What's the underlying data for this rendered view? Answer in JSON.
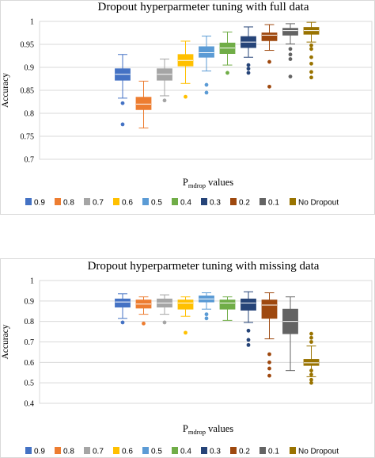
{
  "chart_data": [
    {
      "type": "box",
      "title": "Dropout hyperparmeter tuning with full data",
      "ylabel": "Accuracy",
      "xlabel": {
        "main": "P",
        "subscript": "mdrop",
        "suffix": " values"
      },
      "ylim": [
        0.7,
        1.0
      ],
      "ytick_step": 0.05,
      "yticks": [
        "0.7",
        "0.75",
        "0.8",
        "0.85",
        "0.9",
        "0.95",
        "1"
      ],
      "grid": true,
      "legend_position": "bottom",
      "series": [
        {
          "name": "0.9",
          "color": "#4472C4",
          "min": 0.833,
          "q1": 0.872,
          "median": 0.885,
          "q3": 0.897,
          "max": 0.928,
          "outliers": [
            0.822,
            0.776
          ]
        },
        {
          "name": "0.8",
          "color": "#ED7D31",
          "min": 0.768,
          "q1": 0.808,
          "median": 0.82,
          "q3": 0.835,
          "max": 0.87,
          "outliers": []
        },
        {
          "name": "0.7",
          "color": "#A5A5A5",
          "min": 0.838,
          "q1": 0.872,
          "median": 0.885,
          "q3": 0.897,
          "max": 0.918,
          "outliers": [
            0.828
          ]
        },
        {
          "name": "0.6",
          "color": "#FFC000",
          "min": 0.865,
          "q1": 0.903,
          "median": 0.915,
          "q3": 0.928,
          "max": 0.957,
          "outliers": [
            0.836
          ]
        },
        {
          "name": "0.5",
          "color": "#5B9BD5",
          "min": 0.892,
          "q1": 0.922,
          "median": 0.932,
          "q3": 0.945,
          "max": 0.968,
          "outliers": [
            0.862,
            0.845
          ]
        },
        {
          "name": "0.4",
          "color": "#70AD47",
          "min": 0.905,
          "q1": 0.93,
          "median": 0.942,
          "q3": 0.953,
          "max": 0.977,
          "outliers": [
            0.888
          ]
        },
        {
          "name": "0.3",
          "color": "#264478",
          "min": 0.922,
          "q1": 0.943,
          "median": 0.955,
          "q3": 0.967,
          "max": 0.988,
          "outliers": [
            0.905,
            0.897,
            0.888
          ]
        },
        {
          "name": "0.2",
          "color": "#9E480E",
          "min": 0.937,
          "q1": 0.958,
          "median": 0.97,
          "q3": 0.975,
          "max": 0.993,
          "outliers": [
            0.912,
            0.858
          ]
        },
        {
          "name": "0.1",
          "color": "#636363",
          "min": 0.951,
          "q1": 0.97,
          "median": 0.98,
          "q3": 0.985,
          "max": 0.995,
          "outliers": [
            0.94,
            0.928,
            0.918,
            0.88
          ]
        },
        {
          "name": "No Dropout",
          "color": "#997300",
          "min": 0.955,
          "q1": 0.972,
          "median": 0.98,
          "q3": 0.987,
          "max": 0.998,
          "outliers": [
            0.948,
            0.94,
            0.922,
            0.908,
            0.89,
            0.878
          ]
        }
      ]
    },
    {
      "type": "box",
      "title": "Dropout hyperparmeter tuning with missing data",
      "ylabel": "Accuracy",
      "xlabel": {
        "main": "P",
        "subscript": "mdrop",
        "suffix": " values"
      },
      "ylim": [
        0.4,
        1.0
      ],
      "ytick_step": 0.1,
      "yticks": [
        "0.4",
        "0.5",
        "0.6",
        "0.7",
        "0.8",
        "0.9",
        "1"
      ],
      "grid": true,
      "legend_position": "bottom",
      "series": [
        {
          "name": "0.9",
          "color": "#4472C4",
          "min": 0.815,
          "q1": 0.87,
          "median": 0.895,
          "q3": 0.91,
          "max": 0.935,
          "outliers": [
            0.795
          ]
        },
        {
          "name": "0.8",
          "color": "#ED7D31",
          "min": 0.835,
          "q1": 0.865,
          "median": 0.885,
          "q3": 0.905,
          "max": 0.92,
          "outliers": [
            0.79
          ]
        },
        {
          "name": "0.7",
          "color": "#A5A5A5",
          "min": 0.835,
          "q1": 0.87,
          "median": 0.89,
          "q3": 0.91,
          "max": 0.93,
          "outliers": [
            0.795
          ]
        },
        {
          "name": "0.6",
          "color": "#FFC000",
          "min": 0.825,
          "q1": 0.86,
          "median": 0.89,
          "q3": 0.905,
          "max": 0.92,
          "outliers": [
            0.745
          ]
        },
        {
          "name": "0.5",
          "color": "#5B9BD5",
          "min": 0.86,
          "q1": 0.895,
          "median": 0.91,
          "q3": 0.925,
          "max": 0.94,
          "outliers": [
            0.835,
            0.815
          ]
        },
        {
          "name": "0.4",
          "color": "#70AD47",
          "min": 0.805,
          "q1": 0.86,
          "median": 0.89,
          "q3": 0.905,
          "max": 0.92,
          "outliers": []
        },
        {
          "name": "0.3",
          "color": "#264478",
          "min": 0.795,
          "q1": 0.855,
          "median": 0.89,
          "q3": 0.91,
          "max": 0.945,
          "outliers": [
            0.755,
            0.71,
            0.685
          ]
        },
        {
          "name": "0.2",
          "color": "#9E480E",
          "min": 0.715,
          "q1": 0.815,
          "median": 0.88,
          "q3": 0.905,
          "max": 0.94,
          "outliers": [
            0.64,
            0.6,
            0.57,
            0.535
          ]
        },
        {
          "name": "0.1",
          "color": "#636363",
          "min": 0.56,
          "q1": 0.74,
          "median": 0.8,
          "q3": 0.86,
          "max": 0.92,
          "outliers": []
        },
        {
          "name": "No Dropout",
          "color": "#997300",
          "min": 0.53,
          "q1": 0.585,
          "median": 0.598,
          "q3": 0.615,
          "max": 0.68,
          "outliers": [
            0.74,
            0.72,
            0.7,
            0.56,
            0.54,
            0.515,
            0.5
          ]
        }
      ]
    }
  ]
}
